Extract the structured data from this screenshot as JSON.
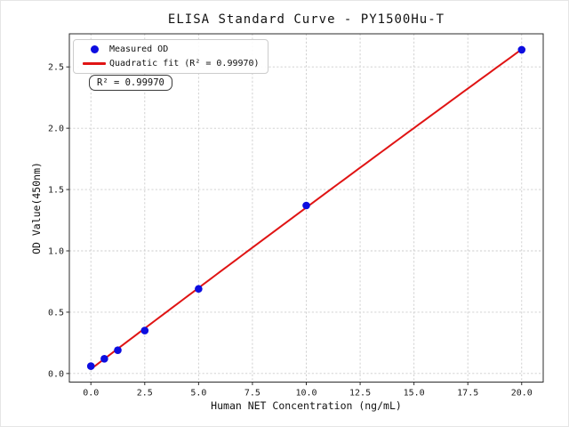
{
  "chart_data": {
    "type": "scatter",
    "title": "ELISA Standard Curve - PY1500Hu-T",
    "xlabel": "Human NET Concentration (ng/mL)",
    "ylabel": "OD Value(450nm)",
    "x": [
      0,
      0.625,
      1.25,
      2.5,
      5,
      10,
      20
    ],
    "series": [
      {
        "name": "Measured OD",
        "type": "scatter",
        "values": [
          0.06,
          0.12,
          0.19,
          0.35,
          0.69,
          1.37,
          2.64
        ],
        "color": "#0d0de0"
      },
      {
        "name": "Quadratic fit (R² = 0.99970)",
        "type": "quadratic-fit-line",
        "fit_x_range": [
          0,
          20
        ],
        "color": "#e01414"
      }
    ],
    "x_ticks": [
      "0.0",
      "2.5",
      "5.0",
      "7.5",
      "10.0",
      "12.5",
      "15.0",
      "17.5",
      "20.0"
    ],
    "x_tick_values": [
      0,
      2.5,
      5,
      7.5,
      10,
      12.5,
      15,
      17.5,
      20
    ],
    "y_ticks": [
      "0.0",
      "0.5",
      "1.0",
      "1.5",
      "2.0",
      "2.5"
    ],
    "y_tick_values": [
      0,
      0.5,
      1,
      1.5,
      2,
      2.5
    ],
    "xlim": [
      -1,
      21
    ],
    "ylim": [
      -0.07,
      2.77
    ],
    "grid": true,
    "grid_color": "#cccccc",
    "frame_color": "#2b2b2b",
    "tick_label_color": "#1a1a1a",
    "legend_position": "upper left",
    "annotation": "R² = 0.99970",
    "background": "#ffffff"
  }
}
